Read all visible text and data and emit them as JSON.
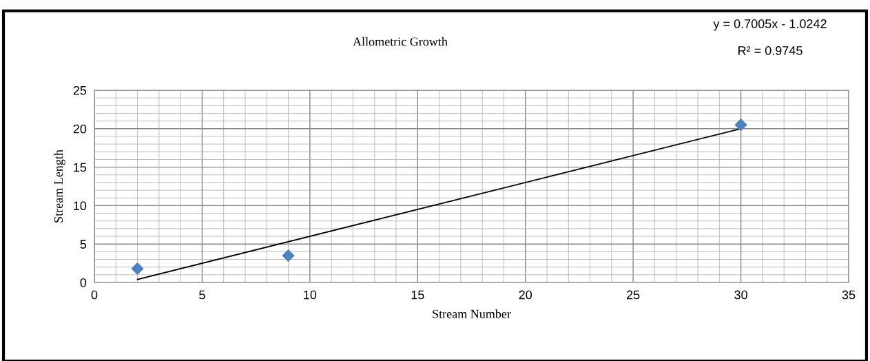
{
  "chart_data": {
    "type": "scatter",
    "title": "Allometric Growth",
    "xlabel": "Stream Number",
    "ylabel": "Stream Length",
    "series": [
      {
        "color": "#4f81bd",
        "marker": "diamond",
        "x": [
          2,
          9,
          30
        ],
        "values": [
          1.8,
          3.5,
          20.5
        ]
      },
      {
        "type": "line",
        "color": "#000000",
        "marker": "none",
        "x": [
          2,
          30
        ],
        "values": [
          0.4,
          20.0
        ]
      }
    ],
    "grid": true,
    "annotations": [
      "y = 0.7005x - 1.0242",
      "R² = 0.9745"
    ],
    "xlim": [
      0,
      35
    ],
    "ylim": [
      0,
      25
    ],
    "xticks": [
      0,
      {
        "value": 1,
        "label": null
      },
      {
        "value": 2,
        "label": null
      },
      {
        "value": 3,
        "label": null
      },
      {
        "value": 4,
        "label": null
      },
      5,
      {
        "value": 6,
        "label": null
      },
      {
        "value": 7,
        "label": null
      },
      {
        "value": 8,
        "label": null
      },
      {
        "value": 9,
        "label": null
      },
      10,
      {
        "value": 11,
        "label": null
      },
      {
        "value": 12,
        "label": null
      },
      {
        "value": 13,
        "label": null
      },
      {
        "value": 14,
        "label": null
      },
      15,
      {
        "value": 16,
        "label": null
      },
      {
        "value": 17,
        "label": null
      },
      {
        "value": 18,
        "label": null
      },
      {
        "value": 19,
        "label": null
      },
      20,
      {
        "value": 21,
        "label": null
      },
      {
        "value": 22,
        "label": null
      },
      {
        "value": 23,
        "label": null
      },
      {
        "value": 24,
        "label": null
      },
      25,
      {
        "value": 26,
        "label": null
      },
      {
        "value": 27,
        "label": null
      },
      {
        "value": 28,
        "label": null
      },
      {
        "value": 29,
        "label": null
      },
      30,
      {
        "value": 31,
        "label": null
      },
      {
        "value": 32,
        "label": null
      },
      {
        "value": 33,
        "label": null
      },
      {
        "value": 34,
        "label": null
      },
      35
    ],
    "yticks": [
      0,
      {
        "value": 1,
        "label": null
      },
      {
        "value": 2,
        "label": null
      },
      {
        "value": 3,
        "label": null
      },
      {
        "value": 4,
        "label": null
      },
      5,
      {
        "value": 6,
        "label": null
      },
      {
        "value": 7,
        "label": null
      },
      {
        "value": 8,
        "label": null
      },
      {
        "value": 9,
        "label": null
      },
      10,
      {
        "value": 11,
        "label": null
      },
      {
        "value": 12,
        "label": null
      },
      {
        "value": 13,
        "label": null
      },
      {
        "value": 14,
        "label": null
      },
      15,
      {
        "value": 16,
        "label": null
      },
      {
        "value": 17,
        "label": null
      },
      {
        "value": 18,
        "label": null
      },
      {
        "value": 19,
        "label": null
      },
      20,
      {
        "value": 21,
        "label": null
      },
      {
        "value": 22,
        "label": null
      },
      {
        "value": 23,
        "label": null
      },
      {
        "value": 24,
        "label": null
      },
      25
    ]
  }
}
